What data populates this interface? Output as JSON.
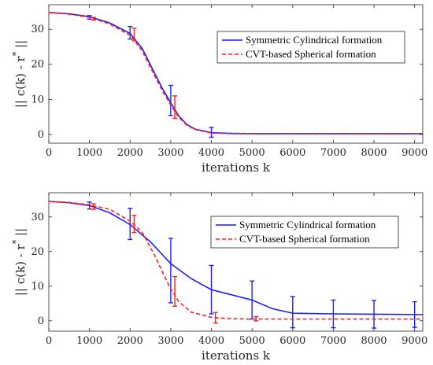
{
  "chart_data": [
    {
      "type": "line",
      "xlabel": "iterations k",
      "ylabel": "|| c(k) - r* ||",
      "xlim": [
        0,
        9200
      ],
      "ylim": [
        -2.5,
        37
      ],
      "xticks": [
        0,
        1000,
        2000,
        3000,
        4000,
        5000,
        6000,
        7000,
        8000,
        9000
      ],
      "yticks": [
        0,
        10,
        20,
        30
      ],
      "grid": false,
      "legend_position": "upper-right",
      "series": [
        {
          "name": "Symmetric Cylindrical formation",
          "color": "#1f1fff",
          "style": "solid",
          "x": [
            0,
            500,
            1000,
            1500,
            2000,
            2300,
            2600,
            2800,
            3000,
            3200,
            3400,
            3600,
            4000,
            4500,
            5000,
            6000,
            7000,
            8000,
            9000,
            9200
          ],
          "y": [
            34.8,
            34.4,
            33.6,
            31.8,
            28.8,
            24.5,
            17.5,
            13.0,
            9.0,
            5.2,
            2.8,
            1.5,
            0.5,
            0.3,
            0.2,
            0.2,
            0.2,
            0.2,
            0.2,
            0.2
          ],
          "errorbars": {
            "x": [
              1000,
              2000,
              3000,
              4000
            ],
            "y": [
              33.4,
              29.0,
              9.7,
              0.6
            ],
            "err": [
              0.5,
              1.8,
              4.3,
              1.4
            ]
          }
        },
        {
          "name": "CVT-based Spherical formation",
          "color": "#ff2020",
          "style": "dashed",
          "x": [
            0,
            500,
            1000,
            1500,
            2000,
            2300,
            2600,
            2800,
            3000,
            3200,
            3400,
            3600,
            4000,
            4500,
            5000,
            6000,
            7000,
            8000,
            9000,
            9200
          ],
          "y": [
            34.8,
            34.3,
            33.4,
            31.5,
            28.3,
            23.8,
            16.8,
            12.3,
            8.4,
            4.8,
            2.6,
            1.4,
            0.4,
            0.2,
            0.2,
            0.2,
            0.2,
            0.2,
            0.2,
            0.2
          ],
          "errorbars": {
            "x": [
              1100,
              2100,
              3100
            ],
            "y": [
              33.0,
              28.5,
              7.8
            ],
            "err": [
              0.4,
              1.8,
              3.2
            ]
          }
        }
      ]
    },
    {
      "type": "line",
      "xlabel": "iterations k",
      "ylabel": "|| c(k) - r* ||",
      "xlim": [
        0,
        9200
      ],
      "ylim": [
        -3,
        37
      ],
      "xticks": [
        0,
        1000,
        2000,
        3000,
        4000,
        5000,
        6000,
        7000,
        8000,
        9000
      ],
      "yticks": [
        0,
        10,
        20,
        30
      ],
      "grid": false,
      "legend_position": "upper-right",
      "series": [
        {
          "name": "Symmetric Cylindrical formation",
          "color": "#1f1fff",
          "style": "solid",
          "x": [
            0,
            500,
            1000,
            1500,
            2000,
            2500,
            3000,
            3500,
            4000,
            4500,
            5000,
            5500,
            6000,
            7000,
            8000,
            9000,
            9200
          ],
          "y": [
            34.5,
            34.1,
            33.3,
            31.2,
            27.8,
            22.8,
            16.5,
            12.2,
            9.0,
            7.5,
            6.0,
            3.5,
            2.2,
            2.0,
            1.9,
            1.8,
            1.8
          ],
          "errorbars": {
            "x": [
              1000,
              2000,
              3000,
              4000,
              5000,
              6000,
              7000,
              8000,
              9000
            ],
            "y": [
              33.3,
              28.0,
              14.5,
              9.0,
              6.0,
              2.5,
              2.0,
              1.9,
              1.8
            ],
            "err": [
              1.0,
              4.5,
              9.3,
              7.0,
              5.5,
              4.5,
              4.0,
              4.0,
              3.7
            ]
          }
        },
        {
          "name": "CVT-based Spherical formation",
          "color": "#ff2020",
          "style": "dashed",
          "x": [
            0,
            500,
            1000,
            1500,
            2000,
            2300,
            2600,
            2800,
            3000,
            3200,
            3500,
            4000,
            4500,
            5000,
            6000,
            7000,
            8000,
            9000,
            9200
          ],
          "y": [
            34.5,
            34.2,
            33.5,
            32.2,
            28.8,
            25.5,
            19.0,
            14.0,
            9.2,
            5.5,
            2.5,
            1.0,
            0.6,
            0.5,
            0.5,
            0.5,
            0.5,
            0.5,
            0.5
          ],
          "errorbars": {
            "x": [
              1100,
              2100,
              3100,
              4100,
              5100
            ],
            "y": [
              33.0,
              28.0,
              8.5,
              0.9,
              0.6
            ],
            "err": [
              0.8,
              2.5,
              4.3,
              1.5,
              0.6
            ]
          }
        }
      ]
    }
  ]
}
